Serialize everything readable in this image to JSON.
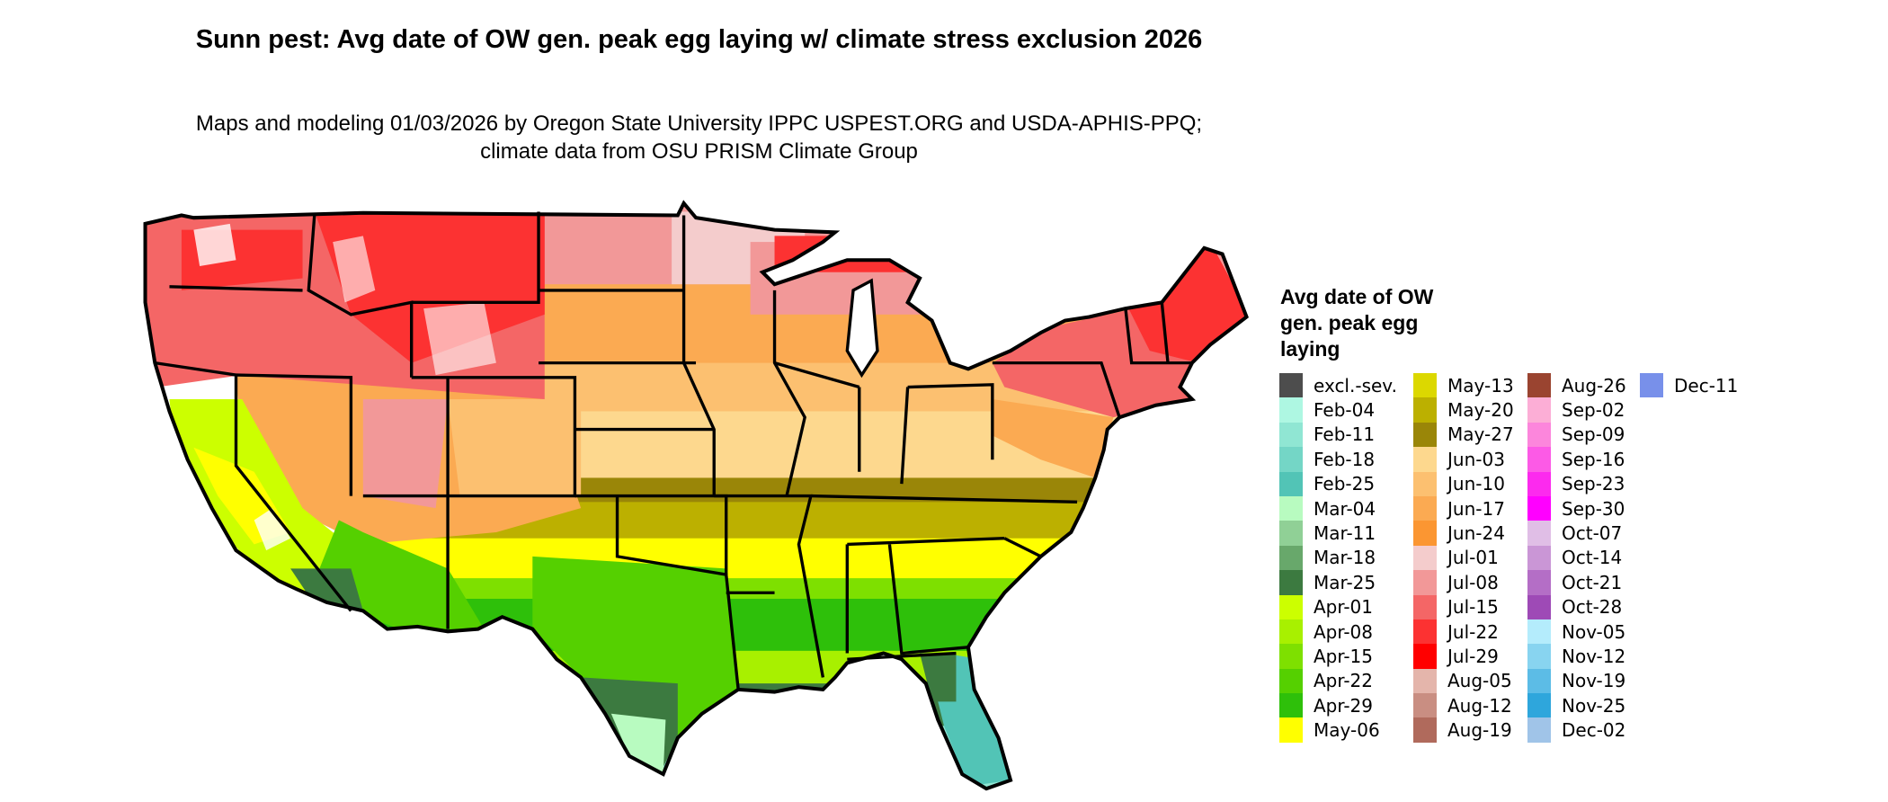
{
  "title": "Sunn pest: Avg date of OW gen. peak egg laying w/ climate stress exclusion 2026",
  "subtitle": "Maps and modeling 01/03/2026 by Oregon State University IPPC USPEST.ORG and USDA-APHIS-PPQ; climate data from OSU PRISM Climate Group",
  "legend": {
    "title": "Avg date of OW gen. peak egg laying",
    "columns": [
      [
        {
          "label": "excl.-sev.",
          "color": "#4d4d4d"
        },
        {
          "label": "Feb-04",
          "color": "#aef7e2"
        },
        {
          "label": "Feb-11",
          "color": "#90e6d3"
        },
        {
          "label": "Feb-18",
          "color": "#74d6c6"
        },
        {
          "label": "Feb-25",
          "color": "#52c4b6"
        },
        {
          "label": "Mar-04",
          "color": "#b8fbc0"
        },
        {
          "label": "Mar-11",
          "color": "#90d096"
        },
        {
          "label": "Mar-18",
          "color": "#68a86b"
        },
        {
          "label": "Mar-25",
          "color": "#3c7a40"
        },
        {
          "label": "Apr-01",
          "color": "#ccff00"
        },
        {
          "label": "Apr-08",
          "color": "#a8f000"
        },
        {
          "label": "Apr-15",
          "color": "#7ee000"
        },
        {
          "label": "Apr-22",
          "color": "#55d000"
        },
        {
          "label": "Apr-29",
          "color": "#2ec00a"
        },
        {
          "label": "May-06",
          "color": "#ffff00"
        }
      ],
      [
        {
          "label": "May-13",
          "color": "#dcd800"
        },
        {
          "label": "May-20",
          "color": "#bcb000"
        },
        {
          "label": "May-27",
          "color": "#9a8608"
        },
        {
          "label": "Jun-03",
          "color": "#fdd88e"
        },
        {
          "label": "Jun-10",
          "color": "#fcc070"
        },
        {
          "label": "Jun-17",
          "color": "#fbaa52"
        },
        {
          "label": "Jun-24",
          "color": "#fb9632"
        },
        {
          "label": "Jul-01",
          "color": "#f4cccc"
        },
        {
          "label": "Jul-08",
          "color": "#f29898"
        },
        {
          "label": "Jul-15",
          "color": "#f46666"
        },
        {
          "label": "Jul-22",
          "color": "#fc3232"
        },
        {
          "label": "Jul-29",
          "color": "#ff0000"
        },
        {
          "label": "Aug-05",
          "color": "#e4b5ab"
        },
        {
          "label": "Aug-12",
          "color": "#c98e82"
        },
        {
          "label": "Aug-19",
          "color": "#b06a5c"
        }
      ],
      [
        {
          "label": "Aug-26",
          "color": "#9a4430"
        },
        {
          "label": "Sep-02",
          "color": "#fcaed6"
        },
        {
          "label": "Sep-09",
          "color": "#fc86dc"
        },
        {
          "label": "Sep-16",
          "color": "#fc5ae6"
        },
        {
          "label": "Sep-23",
          "color": "#fc2aee"
        },
        {
          "label": "Sep-30",
          "color": "#ff00ff"
        },
        {
          "label": "Oct-07",
          "color": "#e0bee6"
        },
        {
          "label": "Oct-14",
          "color": "#ca96d6"
        },
        {
          "label": "Oct-21",
          "color": "#b46ec6"
        },
        {
          "label": "Oct-28",
          "color": "#9e4ab6"
        },
        {
          "label": "Nov-05",
          "color": "#b4ecfc"
        },
        {
          "label": "Nov-12",
          "color": "#88d4f0"
        },
        {
          "label": "Nov-19",
          "color": "#5cbce6"
        },
        {
          "label": "Nov-25",
          "color": "#2ea6dc"
        },
        {
          "label": "Dec-02",
          "color": "#a0c4e8"
        }
      ],
      [
        {
          "label": "Dec-11",
          "color": "#7890ea"
        }
      ]
    ]
  }
}
